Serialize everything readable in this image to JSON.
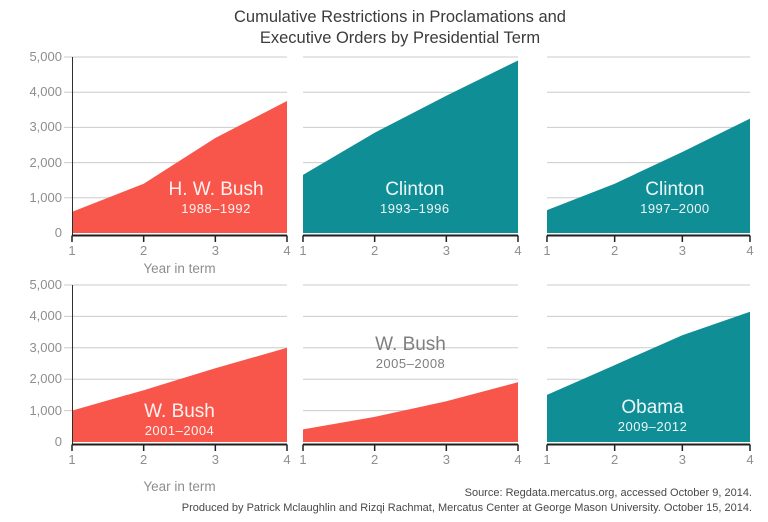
{
  "title": {
    "line1": "Cumulative Restrictions in Proclamations and",
    "line2": "Executive Orders by Presidential Term"
  },
  "colors": {
    "red": "#F8564B",
    "teal": "#0F8E96",
    "grid": "#CBCBCB",
    "axis": "#1F1F1F",
    "spine": "#2F2F2F",
    "tick_label": "#8E8E8E",
    "label_white": "#FFFFFF",
    "label_gray": "#7F7F7F",
    "title_text": "#3B3B3B",
    "footer_text": "#484848"
  },
  "axes": {
    "y_ticks": [
      "5,000",
      "4,000",
      "3,000",
      "2,000",
      "1,000",
      "0"
    ],
    "x_ticks": [
      "1",
      "2",
      "3",
      "4"
    ],
    "x_axis_label": "Year in term"
  },
  "footer": {
    "line1": "Source: Regdata.mercatus.org, accessed October 9, 2014.",
    "line2": "Produced by Patrick Mclaughlin and Rizqi Rachmat, Mercatus Center at George Mason University. October 15, 2014."
  },
  "chart_data": {
    "type": "area",
    "title": "Cumulative Restrictions in Proclamations and Executive Orders by Presidential Term",
    "x": [
      1,
      2,
      3,
      4
    ],
    "xlabel": "Year in term",
    "ylabel": "",
    "ylim": [
      0,
      5000
    ],
    "grid": true,
    "layout_hint": "small multiples, 2 rows x 3 columns; y tick labels on left column only; 'Year in term' under left-column charts only",
    "series": [
      {
        "name": "H. W. Bush",
        "years": "1988–1992",
        "color": "red",
        "label_color": "white",
        "values": [
          600,
          1400,
          2700,
          3750
        ]
      },
      {
        "name": "Clinton",
        "years": "1993–1996",
        "color": "teal",
        "label_color": "white",
        "values": [
          1650,
          2850,
          3900,
          4900
        ]
      },
      {
        "name": "Clinton",
        "years": "1997–2000",
        "color": "teal",
        "label_color": "white",
        "values": [
          650,
          1400,
          2300,
          3250
        ]
      },
      {
        "name": "W. Bush",
        "years": "2001–2004",
        "color": "red",
        "label_color": "white",
        "values": [
          1000,
          1650,
          2350,
          3000
        ]
      },
      {
        "name": "W. Bush",
        "years": "2005–2008",
        "color": "red",
        "label_color": "gray",
        "values": [
          400,
          800,
          1300,
          1900
        ]
      },
      {
        "name": "Obama",
        "years": "2009–2012",
        "color": "teal",
        "label_color": "white",
        "values": [
          1500,
          2450,
          3400,
          4150
        ]
      }
    ]
  }
}
